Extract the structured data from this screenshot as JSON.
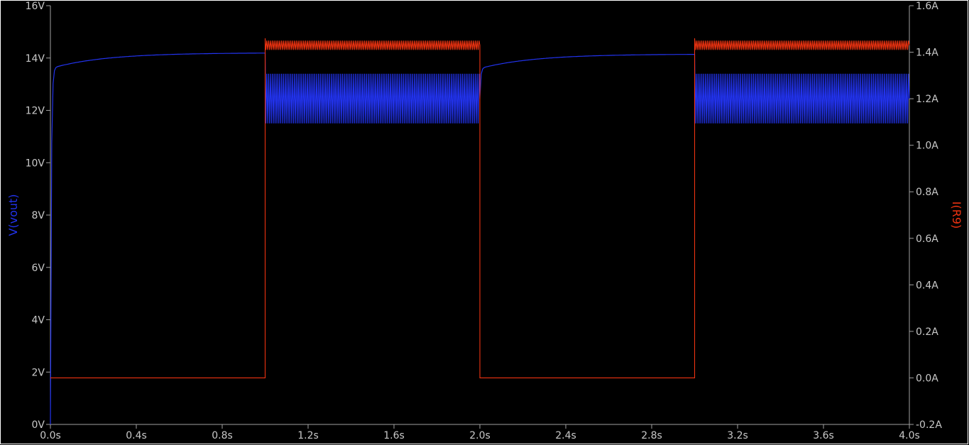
{
  "chart_data": {
    "type": "line",
    "title": "",
    "xlabel": "",
    "x_unit": "s",
    "xlim": [
      0.0,
      4.0
    ],
    "x_ticks": [
      "0.0s",
      "0.4s",
      "0.8s",
      "1.2s",
      "1.6s",
      "2.0s",
      "2.4s",
      "2.8s",
      "3.2s",
      "3.6s",
      "4.0s"
    ],
    "y_left": {
      "label": "V(vout)",
      "color": "#2233ee",
      "ylim": [
        0,
        16
      ],
      "ticks": [
        "0V",
        "2V",
        "4V",
        "6V",
        "8V",
        "10V",
        "12V",
        "14V",
        "16V"
      ]
    },
    "y_right": {
      "label": "I(R9)",
      "color": "#ee3311",
      "ylim": [
        -0.2,
        1.6
      ],
      "ticks": [
        "-0.2A",
        "0.0A",
        "0.2A",
        "0.4A",
        "0.6A",
        "0.8A",
        "1.0A",
        "1.2A",
        "1.4A",
        "1.6A"
      ]
    },
    "series": [
      {
        "name": "V(vout)",
        "axis": "left",
        "color": "#2233ee",
        "segments": [
          {
            "t_start": 0.0,
            "t_end": 1.0,
            "mode": "charge",
            "v_start": 0.0,
            "v_knee": 13.6,
            "v_end": 14.2
          },
          {
            "t_start": 1.0,
            "t_end": 2.0,
            "mode": "ripple",
            "v_min": 11.5,
            "v_max": 13.4
          },
          {
            "t_start": 2.0,
            "t_end": 3.0,
            "mode": "charge",
            "v_start": 12.5,
            "v_knee": 13.6,
            "v_end": 14.15
          },
          {
            "t_start": 3.0,
            "t_end": 4.0,
            "mode": "ripple",
            "v_min": 11.5,
            "v_max": 13.4
          }
        ]
      },
      {
        "name": "I(R9)",
        "axis": "right",
        "color": "#ee3311",
        "segments": [
          {
            "t_start": 0.0,
            "t_end": 1.0,
            "mode": "flat",
            "i": 0.0
          },
          {
            "t_start": 1.0,
            "t_end": 2.0,
            "mode": "ripple",
            "i_min": 1.41,
            "i_max": 1.45,
            "i_spike": 1.46
          },
          {
            "t_start": 2.0,
            "t_end": 3.0,
            "mode": "flat",
            "i": 0.0
          },
          {
            "t_start": 3.0,
            "t_end": 4.0,
            "mode": "ripple",
            "i_min": 1.41,
            "i_max": 1.45,
            "i_spike": 1.46
          }
        ]
      }
    ],
    "grid": false,
    "background": "#000000",
    "frame_color": "#ffffff"
  }
}
